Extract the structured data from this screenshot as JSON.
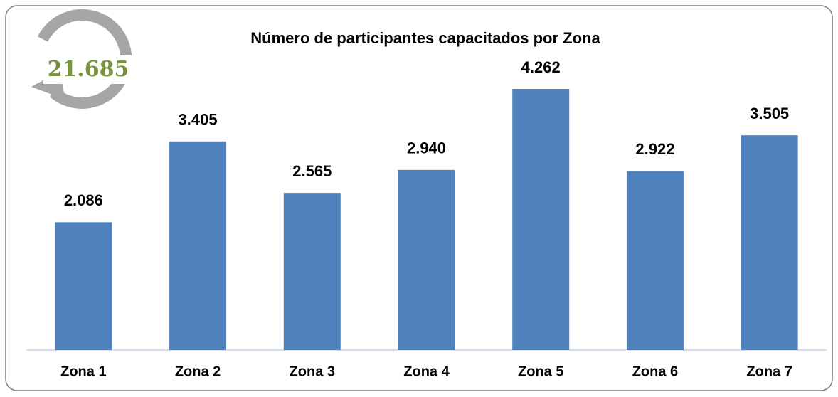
{
  "chart_data": {
    "type": "bar",
    "title": "Número de participantes capacitados por Zona",
    "total_label": "21.685",
    "categories": [
      "Zona 1",
      "Zona 2",
      "Zona 3",
      "Zona 4",
      "Zona 5",
      "Zona 6",
      "Zona 7"
    ],
    "values": [
      2086,
      3405,
      2565,
      2940,
      4262,
      2922,
      3505
    ],
    "value_labels": [
      "2.086",
      "3.405",
      "2.565",
      "2.940",
      "4.262",
      "2.922",
      "3.505"
    ],
    "color": "#4f81bd"
  }
}
